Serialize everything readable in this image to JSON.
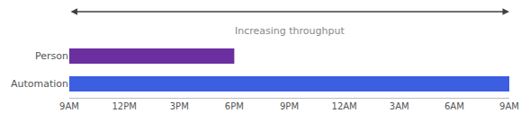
{
  "chart_data": {
    "type": "bar",
    "orientation": "horizontal",
    "categories": [
      "Automation",
      "Person"
    ],
    "values": [
      24,
      9
    ],
    "colors": [
      "#3B5FE0",
      "#6B2FA0"
    ],
    "xlim": [
      0,
      24
    ],
    "xticks": [
      {
        "value": 0,
        "label": "9AM"
      },
      {
        "value": 3,
        "label": "12PM"
      },
      {
        "value": 6,
        "label": "3PM"
      },
      {
        "value": 9,
        "label": "6PM"
      },
      {
        "value": 12,
        "label": "9PM"
      },
      {
        "value": 15,
        "label": "12AM"
      },
      {
        "value": 18,
        "label": "3AM"
      },
      {
        "value": 21,
        "label": "6AM"
      },
      {
        "value": 24,
        "label": "9AM"
      }
    ],
    "annotations": [
      "Increasing throughput"
    ],
    "grid": false
  }
}
